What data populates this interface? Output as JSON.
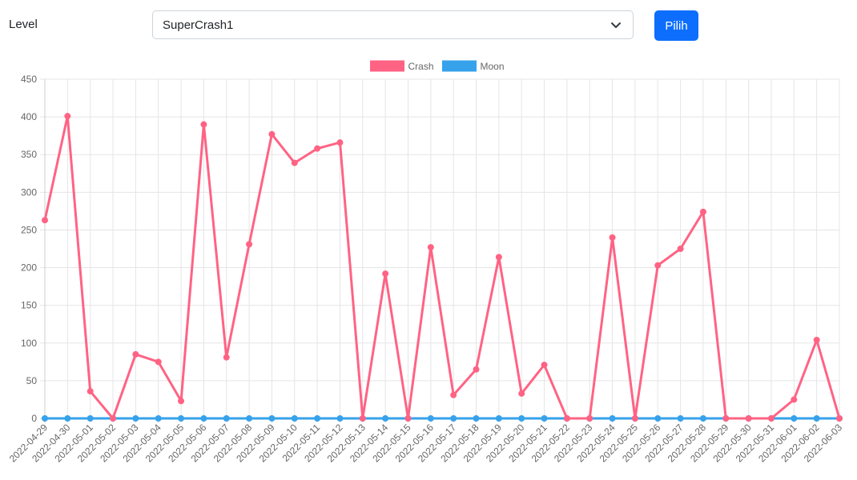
{
  "controls": {
    "level_label": "Level",
    "level_selected": "SuperCrash1",
    "submit_label": "Pilih"
  },
  "chart_data": {
    "type": "line",
    "x": [
      "2022-04-29",
      "2022-04-30",
      "2022-05-01",
      "2022-05-02",
      "2022-05-03",
      "2022-05-04",
      "2022-05-05",
      "2022-05-06",
      "2022-05-07",
      "2022-05-08",
      "2022-05-09",
      "2022-05-10",
      "2022-05-11",
      "2022-05-12",
      "2022-05-13",
      "2022-05-14",
      "2022-05-15",
      "2022-05-16",
      "2022-05-17",
      "2022-05-18",
      "2022-05-19",
      "2022-05-20",
      "2022-05-21",
      "2022-05-22",
      "2022-05-23",
      "2022-05-24",
      "2022-05-25",
      "2022-05-26",
      "2022-05-27",
      "2022-05-28",
      "2022-05-29",
      "2022-05-30",
      "2022-05-31",
      "2022-06-01",
      "2022-06-02",
      "2022-06-03"
    ],
    "series": [
      {
        "name": "Crash",
        "color": "#ff6384",
        "values": [
          263,
          401,
          36,
          0,
          85,
          75,
          23,
          390,
          81,
          231,
          377,
          339,
          358,
          366,
          0,
          192,
          0,
          227,
          31,
          65,
          214,
          33,
          71,
          0,
          0,
          240,
          0,
          203,
          225,
          274,
          0,
          0,
          0,
          25,
          104,
          0
        ]
      },
      {
        "name": "Moon",
        "color": "#36a2eb",
        "values": [
          0,
          0,
          0,
          0,
          0,
          0,
          0,
          0,
          0,
          0,
          0,
          0,
          0,
          0,
          0,
          0,
          0,
          0,
          0,
          0,
          0,
          0,
          0,
          0,
          0,
          0,
          0,
          0,
          0,
          0,
          0,
          0,
          0,
          0,
          0,
          0
        ]
      }
    ],
    "ylim": [
      0,
      450
    ],
    "yticks": [
      0,
      50,
      100,
      150,
      200,
      250,
      300,
      350,
      400,
      450
    ],
    "grid": true,
    "legend_position": "top"
  }
}
